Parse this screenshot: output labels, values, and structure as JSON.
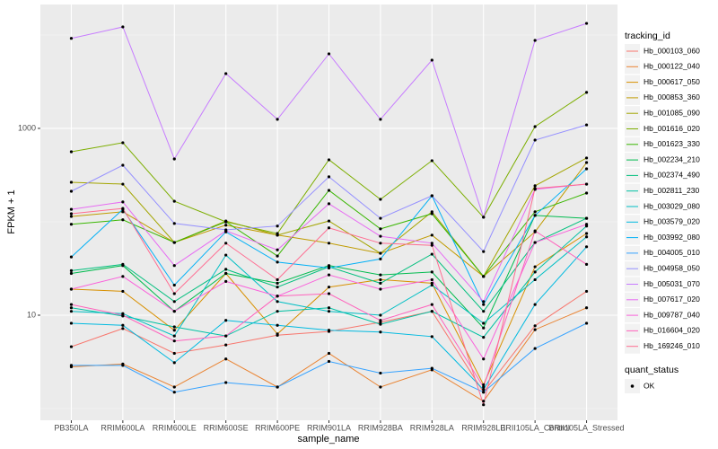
{
  "chart_data": {
    "type": "line",
    "x_label": "sample_name",
    "y_label": "FPKM + 1",
    "log_scale": true,
    "grid": true,
    "categories": [
      "PB350LA",
      "RRIM600LA",
      "RRIM600LE",
      "RRIM600SE",
      "RRIM600PE",
      "RRIM901LA",
      "RRIM928BA",
      "RRIM928LA",
      "RRIM928LE",
      "BRII105LA_Control",
      "BRII105LA_Stressed"
    ],
    "ylim": [
      0.75,
      21200
    ],
    "yticks": [
      10,
      1000
    ],
    "legend_title": "tracking_id",
    "point_legend": {
      "title": "quant_status",
      "label": "OK",
      "color": "#000000"
    },
    "series": [
      {
        "name": "Hb_000103_060",
        "color": "#F8766D",
        "values": [
          4.6,
          7.2,
          3.9,
          4.8,
          6.1,
          6.7,
          8.4,
          11,
          1.5,
          7.7,
          18
        ]
      },
      {
        "name": "Hb_000122_040",
        "color": "#EA8331",
        "values": [
          2.8,
          3.0,
          1.7,
          3.4,
          1.7,
          3.9,
          1.7,
          2.6,
          1.2,
          7.0,
          12
        ]
      },
      {
        "name": "Hb_000617_050",
        "color": "#D89000",
        "values": [
          19,
          18,
          6.9,
          28,
          6.3,
          20,
          24,
          22,
          1.8,
          33,
          75
        ]
      },
      {
        "name": "Hb_000853_360",
        "color": "#C09B00",
        "values": [
          114,
          128,
          60,
          92,
          72,
          59,
          46,
          72,
          26,
          78,
          431
        ]
      },
      {
        "name": "Hb_001085_090",
        "color": "#A3A500",
        "values": [
          265,
          253,
          60,
          102,
          72,
          102,
          46,
          128,
          26,
          243,
          482
        ]
      },
      {
        "name": "Hb_001616_020",
        "color": "#7CAE00",
        "values": [
          562,
          702,
          166,
          100,
          75,
          461,
          174,
          451,
          112,
          1045,
          2430
        ]
      },
      {
        "name": "Hb_001623_330",
        "color": "#39B600",
        "values": [
          94,
          105,
          60,
          100,
          43,
          217,
          84,
          122,
          26,
          128,
          203
        ]
      },
      {
        "name": "Hb_002234_210",
        "color": "#00BB4E",
        "values": [
          28,
          34,
          11,
          28,
          22,
          34,
          27,
          29,
          7.3,
          117,
          109
        ]
      },
      {
        "name": "Hb_002374_490",
        "color": "#00BF7D",
        "values": [
          30,
          35,
          14,
          31,
          20,
          33,
          22,
          45,
          11,
          60,
          109
        ]
      },
      {
        "name": "Hb_002811_230",
        "color": "#00C1A3",
        "values": [
          12,
          9.8,
          7.5,
          6.0,
          11,
          12,
          8.0,
          11,
          5.8,
          29,
          90
        ]
      },
      {
        "name": "Hb_003029_080",
        "color": "#00BFC4",
        "values": [
          11,
          10.4,
          6.0,
          44,
          14,
          11,
          10,
          21,
          8.2,
          24,
          69
        ]
      },
      {
        "name": "Hb_003579_020",
        "color": "#00BAE0",
        "values": [
          8.2,
          7.8,
          3.1,
          8.8,
          7.8,
          6.9,
          6.6,
          5.9,
          1.6,
          13,
          54
        ]
      },
      {
        "name": "Hb_003992_080",
        "color": "#00B0F6",
        "values": [
          42,
          136,
          21,
          78,
          37,
          32,
          40,
          190,
          13,
          117,
          369
        ]
      },
      {
        "name": "Hb_004005_010",
        "color": "#35A2FF",
        "values": [
          2.9,
          2.9,
          1.5,
          1.9,
          1.7,
          3.2,
          2.4,
          2.7,
          1.5,
          4.4,
          8.2
        ]
      },
      {
        "name": "Hb_004958_050",
        "color": "#9590FF",
        "values": [
          212,
          403,
          96,
          82,
          90,
          303,
          109,
          190,
          48,
          750,
          1090
        ]
      },
      {
        "name": "Hb_005031_070",
        "color": "#C77CFF",
        "values": [
          9200,
          12200,
          471,
          3860,
          1250,
          6280,
          1250,
          5380,
          112,
          8750,
          13300
        ]
      },
      {
        "name": "Hb_007617_020",
        "color": "#E76BF3",
        "values": [
          136,
          163,
          34,
          80,
          50,
          156,
          70,
          59,
          14,
          222,
          253
        ]
      },
      {
        "name": "Hb_009787_040",
        "color": "#FA62DB",
        "values": [
          19,
          26,
          11,
          23,
          16,
          27,
          19,
          24,
          3.4,
          60,
          94
        ]
      },
      {
        "name": "Hb_016604_020",
        "color": "#FF62BC",
        "values": [
          13,
          10,
          5.3,
          6.0,
          16,
          17,
          8.8,
          13,
          1.7,
          80,
          35
        ]
      },
      {
        "name": "Hb_169246_010",
        "color": "#FF6C91",
        "values": [
          122,
          139,
          17,
          59,
          24,
          86,
          59,
          56,
          1.1,
          227,
          253
        ]
      }
    ]
  }
}
